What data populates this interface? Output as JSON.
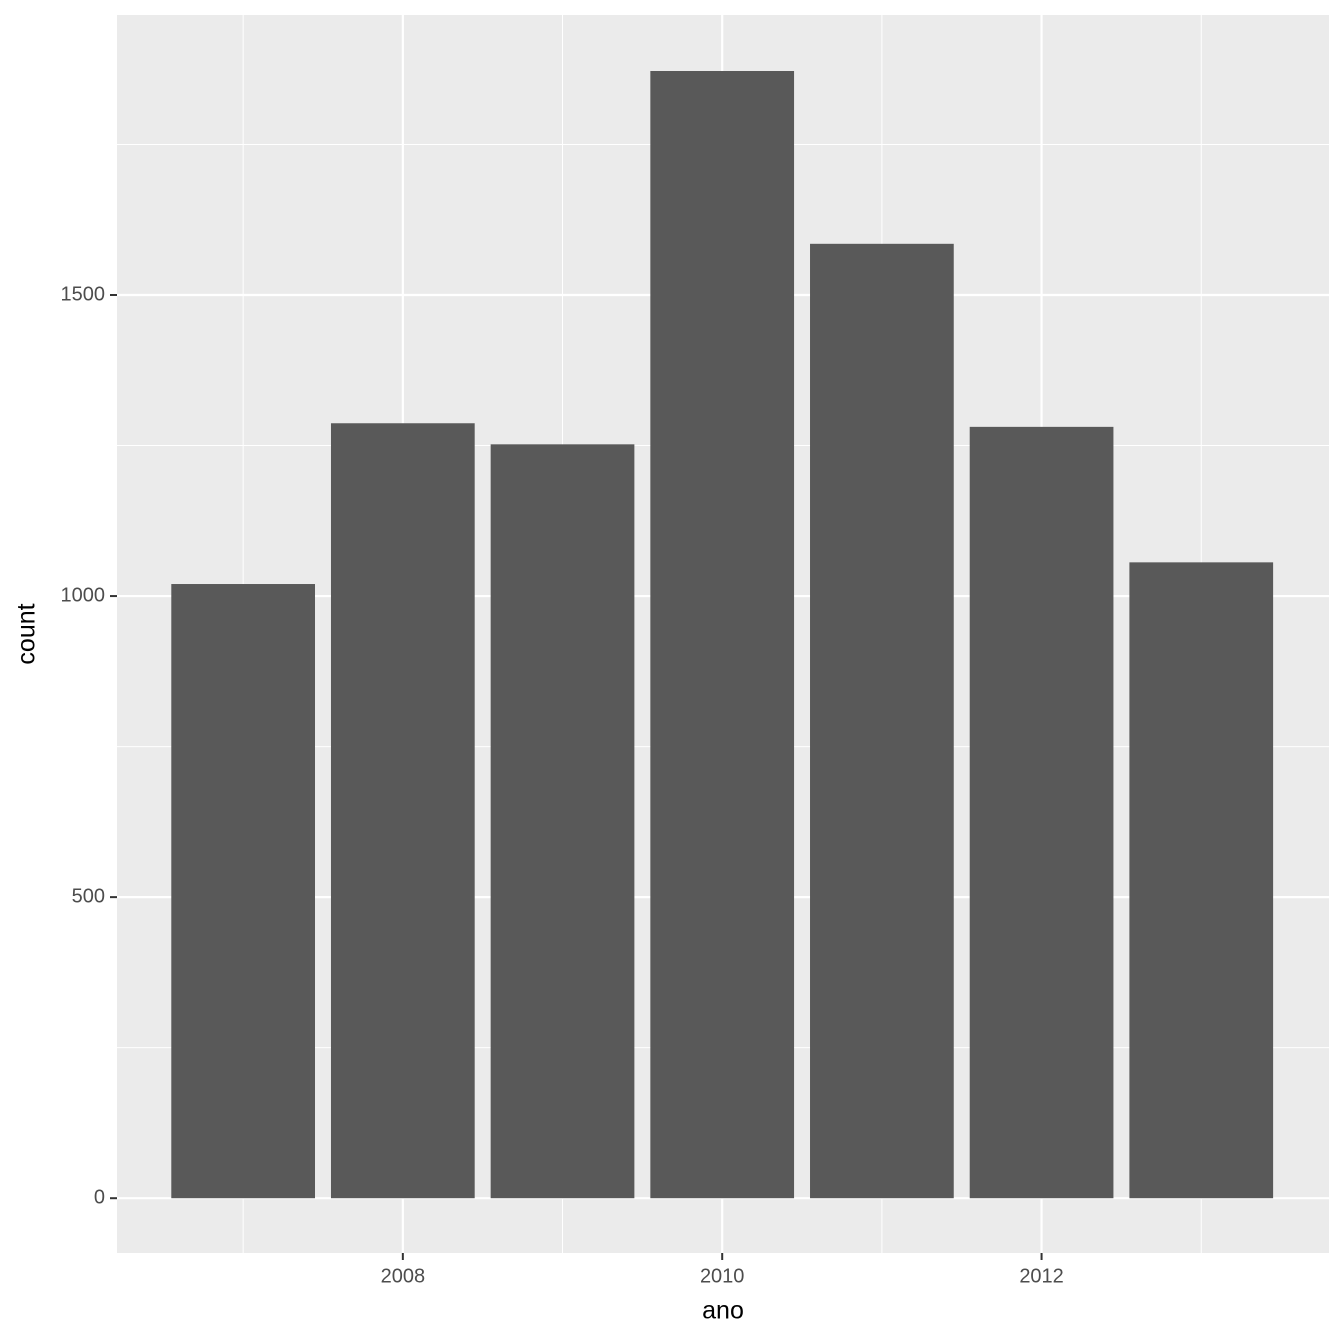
{
  "chart_data": {
    "type": "bar",
    "x_label": "ano",
    "y_label": "count",
    "x": [
      2007,
      2008,
      2009,
      2010,
      2011,
      2012,
      2013
    ],
    "values": [
      1020,
      1287,
      1252,
      1872,
      1585,
      1281,
      1056
    ],
    "color": "#595959",
    "xlim": [
      2006.21,
      2013.8
    ],
    "xticks": [
      2008,
      2010,
      2012
    ],
    "x_minor_ticks": [
      2007,
      2009,
      2011,
      2013
    ],
    "ylim": [
      -91,
      1965
    ],
    "yticks": [
      0,
      500,
      1000,
      1500
    ],
    "y_minor_ticks": [
      250,
      750,
      1250,
      1750
    ],
    "grid": true
  }
}
